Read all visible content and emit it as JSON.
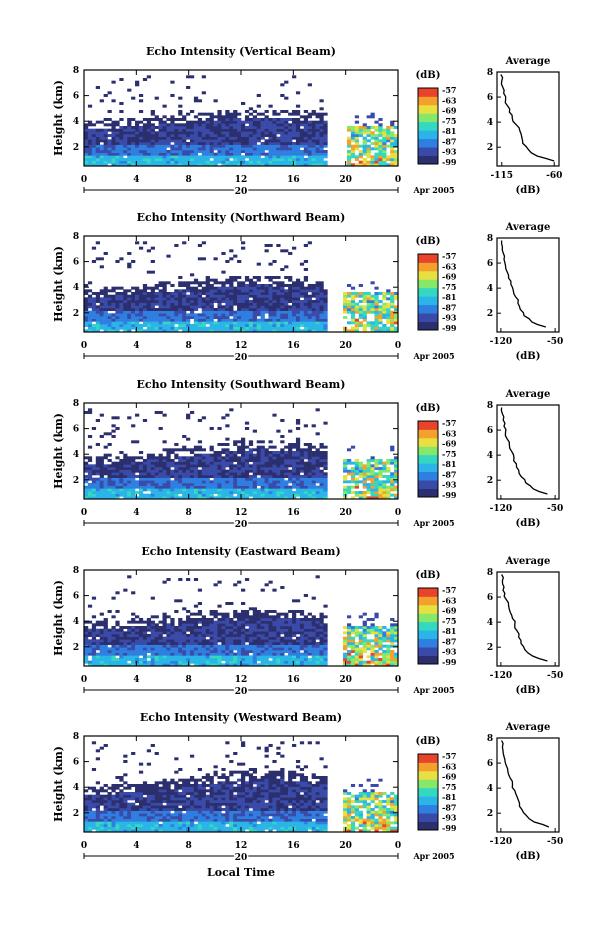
{
  "shared": {
    "y_ticks": [
      "2",
      "4",
      "6",
      "8"
    ],
    "x_ticks": [
      "0",
      "4",
      "8",
      "12",
      "16",
      "20",
      "0"
    ],
    "date_label": "20",
    "date_suffix": "Apr 2005",
    "colorbar_unit": "(dB)",
    "colorbar_ticks": [
      "-57",
      "-63",
      "-69",
      "-75",
      "-81",
      "-87",
      "-93",
      "-99"
    ],
    "colorscale": [
      "#2b2f6e",
      "#3a4aa8",
      "#2f7fe0",
      "#2ab4e8",
      "#34d8c0",
      "#86e86a",
      "#e8e040",
      "#f3a02c",
      "#e8442c"
    ],
    "avg_title": "Average",
    "avg_xlabel": "(dB)",
    "avg_yticks": [
      "2",
      "4",
      "6",
      "8"
    ],
    "time_label": "Local Time"
  },
  "chart_data": [
    {
      "type": "heatmap",
      "title": "Echo Intensity (Vertical Beam)",
      "ylabel": "Height (km)",
      "xlabel": "",
      "xlim": [
        0,
        24
      ],
      "ylim": [
        0.5,
        8
      ],
      "zlim": [
        -99,
        -57
      ],
      "cloud_top_km": [
        3.7,
        3.8,
        3.9,
        4.1,
        4.3,
        4.5,
        4.6,
        4.5,
        4.4,
        4.2,
        3.7,
        3.4
      ],
      "gap_hours": [
        18.7,
        20.0
      ],
      "average": {
        "x_ticks": [
          "-115",
          "-60"
        ],
        "xlim": [
          -120,
          -55
        ],
        "height": [
          0.9,
          1.3,
          1.8,
          2.3,
          2.8,
          3.3,
          3.8,
          4.3,
          4.8,
          5.3,
          5.8,
          6.3,
          6.8,
          7.3,
          7.8
        ],
        "value": [
          -60,
          -78,
          -87,
          -93,
          -94,
          -96,
          -100,
          -104,
          -107,
          -109,
          -111,
          -113,
          -114,
          -115,
          -116
        ]
      }
    },
    {
      "type": "heatmap",
      "title": "Echo Intensity (Northward Beam)",
      "ylabel": "Height (km)",
      "xlabel": "",
      "xlim": [
        0,
        24
      ],
      "ylim": [
        0.5,
        8
      ],
      "zlim": [
        -99,
        -57
      ],
      "cloud_top_km": [
        3.4,
        3.6,
        3.8,
        4.0,
        4.2,
        4.4,
        4.5,
        4.4,
        4.3,
        4.1,
        3.5,
        3.3
      ],
      "gap_hours": [
        18.7,
        19.8
      ],
      "average": {
        "x_ticks": [
          "-120",
          "-50"
        ],
        "xlim": [
          -125,
          -45
        ],
        "height": [
          0.9,
          1.3,
          1.8,
          2.3,
          2.8,
          3.3,
          3.8,
          4.3,
          4.8,
          5.3,
          5.8,
          6.3,
          6.8,
          7.3,
          7.8
        ],
        "value": [
          -62,
          -80,
          -90,
          -95,
          -98,
          -101,
          -104,
          -107,
          -110,
          -112,
          -114,
          -116,
          -117,
          -118,
          -119
        ]
      }
    },
    {
      "type": "heatmap",
      "title": "Echo Intensity (Southward Beam)",
      "ylabel": "Height (km)",
      "xlabel": "",
      "xlim": [
        0,
        24
      ],
      "ylim": [
        0.5,
        8
      ],
      "zlim": [
        -99,
        -57
      ],
      "cloud_top_km": [
        3.4,
        3.6,
        3.8,
        4.0,
        4.2,
        4.5,
        4.7,
        4.6,
        4.4,
        4.1,
        3.6,
        3.3
      ],
      "gap_hours": [
        18.7,
        19.8
      ],
      "average": {
        "x_ticks": [
          "-120",
          "-50"
        ],
        "xlim": [
          -125,
          -45
        ],
        "height": [
          0.9,
          1.3,
          1.8,
          2.3,
          2.8,
          3.3,
          3.8,
          4.3,
          4.8,
          5.3,
          5.8,
          6.3,
          6.8,
          7.3,
          7.8
        ],
        "value": [
          -60,
          -78,
          -88,
          -94,
          -97,
          -100,
          -103,
          -106,
          -109,
          -112,
          -114,
          -116,
          -117,
          -118,
          -119
        ]
      }
    },
    {
      "type": "heatmap",
      "title": "Echo Intensity (Eastward Beam)",
      "ylabel": "Height (km)",
      "xlabel": "",
      "xlim": [
        0,
        24
      ],
      "ylim": [
        0.5,
        8
      ],
      "zlim": [
        -99,
        -57
      ],
      "cloud_top_km": [
        3.6,
        3.8,
        4.0,
        4.2,
        4.3,
        4.5,
        4.6,
        4.5,
        4.4,
        4.1,
        3.7,
        3.4
      ],
      "gap_hours": [
        18.7,
        19.8
      ],
      "average": {
        "x_ticks": [
          "-120",
          "-50"
        ],
        "xlim": [
          -125,
          -45
        ],
        "height": [
          0.9,
          1.3,
          1.8,
          2.3,
          2.8,
          3.3,
          3.8,
          4.3,
          4.8,
          5.3,
          5.8,
          6.3,
          6.8,
          7.3,
          7.8
        ],
        "value": [
          -60,
          -79,
          -89,
          -94,
          -97,
          -99,
          -102,
          -105,
          -108,
          -110,
          -113,
          -115,
          -116,
          -118,
          -119
        ]
      }
    },
    {
      "type": "heatmap",
      "title": "Echo Intensity (Westward Beam)",
      "ylabel": "Height (km)",
      "xlabel": "Local Time",
      "xlim": [
        0,
        24
      ],
      "ylim": [
        0.5,
        8
      ],
      "zlim": [
        -99,
        -57
      ],
      "cloud_top_km": [
        3.6,
        3.8,
        4.0,
        4.2,
        4.5,
        4.8,
        5.0,
        4.9,
        4.6,
        4.3,
        3.6,
        3.3
      ],
      "gap_hours": [
        18.7,
        19.8
      ],
      "average": {
        "x_ticks": [
          "-120",
          "-50"
        ],
        "xlim": [
          -125,
          -45
        ],
        "height": [
          0.9,
          1.3,
          1.8,
          2.3,
          2.8,
          3.3,
          3.8,
          4.3,
          4.8,
          5.3,
          5.8,
          6.3,
          6.8,
          7.3,
          7.8
        ],
        "value": [
          -58,
          -77,
          -87,
          -93,
          -96,
          -99,
          -102,
          -105,
          -108,
          -111,
          -113,
          -115,
          -117,
          -118,
          -119
        ]
      }
    }
  ]
}
